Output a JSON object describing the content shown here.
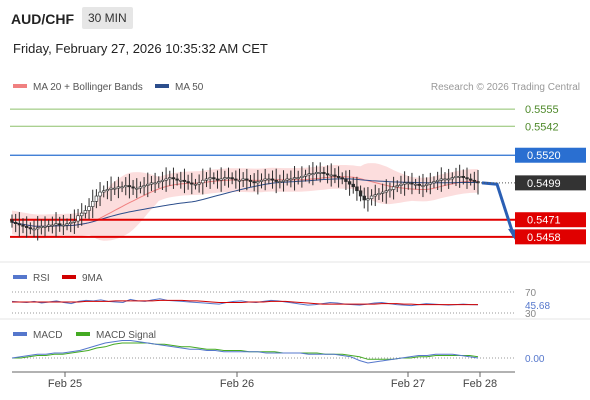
{
  "header": {
    "symbol": "AUD/CHF",
    "timeframe": "30 MIN",
    "datetime": "Friday, February 27, 2026 10:35:32 AM CET"
  },
  "legend": {
    "ma20": "MA 20 + Bollinger Bands",
    "ma50": "MA 50",
    "copyright": "Research © 2026 Trading Central",
    "rsi": "RSI",
    "rsi_ma": "9MA",
    "macd": "MACD",
    "macd_signal": "MACD Signal"
  },
  "colors": {
    "candle_up": "#2b2b2b",
    "ma20": "#f08080",
    "ma50": "#2c4e8c",
    "bands_fill": "#fbd7d7",
    "resistance_green": "#8dc06b",
    "pivot_blue": "#2a6fd1",
    "support_red": "#e00000",
    "arrow": "#2a5fb4",
    "rsi": "#5577cc",
    "rsi_ma": "#d00000",
    "macd": "#5577cc",
    "macd_signal": "#44aa22"
  },
  "chart_data": [
    {
      "type": "candlestick",
      "title": "AUD/CHF",
      "ylim": [
        0.5448,
        0.5565
      ],
      "x_ticks": [
        "Feb 25",
        "Feb 26",
        "Feb 27",
        "Feb 28"
      ],
      "last_price": 0.5499,
      "levels": [
        {
          "label": "0.5555",
          "value": 0.5555,
          "role": "resistance"
        },
        {
          "label": "0.5542",
          "value": 0.5542,
          "role": "resistance"
        },
        {
          "label": "0.5520",
          "value": 0.552,
          "role": "pivot"
        },
        {
          "label": "0.5471",
          "value": 0.5471,
          "role": "support"
        },
        {
          "label": "0.5458",
          "value": 0.5458,
          "role": "support"
        }
      ],
      "forecast_path": [
        0.5499,
        0.5498,
        0.5458
      ],
      "close": [
        0.5469,
        0.5468,
        0.5467,
        0.5466,
        0.5465,
        0.5464,
        0.5464,
        0.5465,
        0.5466,
        0.5466,
        0.5467,
        0.5467,
        0.5468,
        0.5467,
        0.5467,
        0.5468,
        0.5469,
        0.547,
        0.5474,
        0.5476,
        0.5478,
        0.5481,
        0.5485,
        0.5489,
        0.5492,
        0.5493,
        0.5494,
        0.5495,
        0.5495,
        0.5496,
        0.5496,
        0.5497,
        0.5496,
        0.5495,
        0.5495,
        0.5496,
        0.5497,
        0.5498,
        0.5499,
        0.5499,
        0.55,
        0.5501,
        0.5502,
        0.5503,
        0.5502,
        0.5501,
        0.5501,
        0.55,
        0.5499,
        0.5498,
        0.5498,
        0.5499,
        0.5501,
        0.5502,
        0.5503,
        0.5502,
        0.5501,
        0.5502,
        0.5503,
        0.5503,
        0.5502,
        0.5501,
        0.5501,
        0.5502,
        0.5501,
        0.55,
        0.5499,
        0.55,
        0.5501,
        0.5502,
        0.5502,
        0.5501,
        0.55,
        0.55,
        0.5501,
        0.5502,
        0.5502,
        0.5503,
        0.5503,
        0.5504,
        0.5505,
        0.5506,
        0.5506,
        0.5507,
        0.5507,
        0.5506,
        0.5505,
        0.5505,
        0.5504,
        0.5503,
        0.5502,
        0.55,
        0.5498,
        0.5496,
        0.5493,
        0.5489,
        0.5486,
        0.5487,
        0.5489,
        0.549,
        0.5491,
        0.5492,
        0.5493,
        0.5494,
        0.5496,
        0.5497,
        0.5498,
        0.5499,
        0.5499,
        0.5498,
        0.5498,
        0.5497,
        0.5497,
        0.5498,
        0.5499,
        0.55,
        0.5501,
        0.5502,
        0.5502,
        0.5502,
        0.5503,
        0.5504,
        0.5504,
        0.5503,
        0.5502,
        0.5501,
        0.55,
        0.5499
      ]
    },
    {
      "type": "line",
      "title": "RSI",
      "y_ticks": [
        "70",
        "30"
      ],
      "last_value_label": "45.68",
      "series": [
        {
          "name": "RSI",
          "values": [
            52,
            51,
            50,
            52,
            49,
            51,
            53,
            50,
            48,
            52,
            54,
            53,
            55,
            52,
            51,
            50,
            56,
            53,
            52,
            55,
            57,
            54,
            53,
            52,
            51,
            50,
            49,
            48,
            47,
            50,
            52,
            53,
            51,
            50,
            52,
            54,
            53,
            51,
            49,
            47,
            45,
            46,
            48,
            50,
            49,
            47,
            46,
            45,
            47,
            49,
            50,
            48,
            46,
            45,
            44,
            46,
            48,
            47,
            46,
            45,
            46,
            47,
            46,
            45.68
          ]
        },
        {
          "name": "9MA",
          "values": [
            51,
            51,
            51,
            51,
            51,
            51,
            51,
            51,
            51,
            51,
            52,
            52,
            52,
            52,
            53,
            53,
            53,
            53,
            53,
            53,
            54,
            54,
            54,
            54,
            53,
            53,
            52,
            51,
            50,
            50,
            50,
            50,
            51,
            51,
            51,
            52,
            52,
            52,
            51,
            50,
            49,
            48,
            47,
            47,
            47,
            47,
            47,
            47,
            47,
            47,
            48,
            48,
            48,
            47,
            47,
            46,
            46,
            46,
            46,
            46,
            46,
            46,
            46,
            46
          ]
        }
      ]
    },
    {
      "type": "line",
      "title": "MACD",
      "y_ticks": [
        "0.00"
      ],
      "series": [
        {
          "name": "MACD",
          "values": [
            0.0,
            0.0001,
            0.0002,
            0.0003,
            0.0003,
            0.0004,
            0.0004,
            0.0005,
            0.0006,
            0.0008,
            0.001,
            0.0012,
            0.0013,
            0.0014,
            0.0014,
            0.0013,
            0.0012,
            0.0011,
            0.001,
            0.0009,
            0.0008,
            0.0007,
            0.0007,
            0.0006,
            0.0006,
            0.0005,
            0.0005,
            0.0005,
            0.0005,
            0.0005,
            0.0004,
            0.0004,
            0.0004,
            0.0004,
            0.0004,
            0.0003,
            0.0003,
            0.0003,
            0.0003,
            0.0002,
            0.0001,
            -0.0002,
            -0.0004,
            -0.0003,
            -0.0002,
            -0.0001,
            0.0,
            0.0001,
            0.0002,
            0.0002,
            0.0003,
            0.0003,
            0.0003,
            0.0002,
            0.0001,
            0.0
          ]
        },
        {
          "name": "MACD Signal",
          "values": [
            0.0,
            0.0,
            0.0001,
            0.0002,
            0.0002,
            0.0003,
            0.0003,
            0.0004,
            0.0005,
            0.0006,
            0.0008,
            0.0009,
            0.0011,
            0.0012,
            0.0012,
            0.0012,
            0.0012,
            0.0011,
            0.0011,
            0.001,
            0.0009,
            0.0009,
            0.0008,
            0.0007,
            0.0007,
            0.0006,
            0.0006,
            0.0006,
            0.0005,
            0.0005,
            0.0005,
            0.0005,
            0.0004,
            0.0004,
            0.0004,
            0.0004,
            0.0004,
            0.0003,
            0.0003,
            0.0003,
            0.0002,
            0.0001,
            -0.0001,
            -0.0001,
            -0.0001,
            -0.0001,
            0.0,
            0.0,
            0.0001,
            0.0001,
            0.0002,
            0.0002,
            0.0002,
            0.0002,
            0.0002,
            0.0001
          ]
        }
      ]
    }
  ]
}
